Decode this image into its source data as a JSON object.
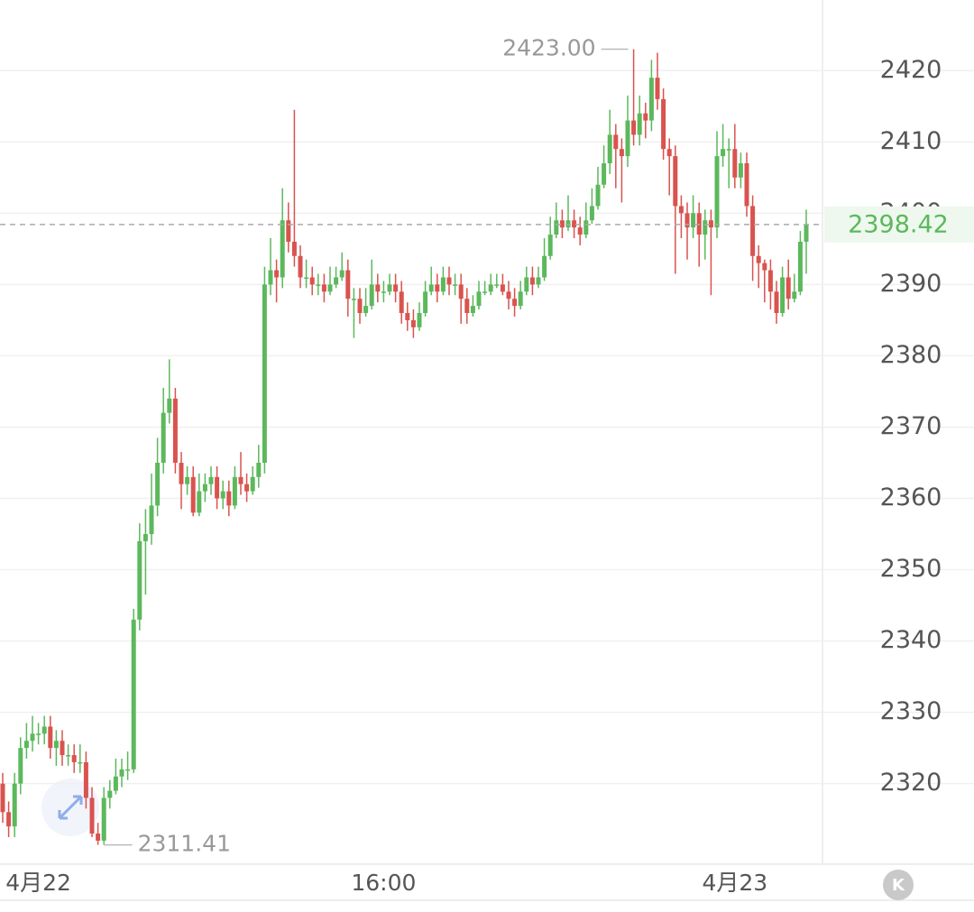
{
  "chart_data": {
    "type": "candlestick",
    "categories": [
      null,
      null,
      null,
      null,
      null,
      null,
      "4月22",
      null,
      null,
      null,
      null,
      null,
      null,
      null,
      null,
      null,
      null,
      null,
      null,
      null,
      null,
      null,
      null,
      null,
      null,
      null,
      null,
      null,
      null,
      null,
      null,
      null,
      null,
      null,
      null,
      null,
      null,
      null,
      null,
      null,
      null,
      null,
      null,
      null,
      null,
      null,
      null,
      null,
      null,
      null,
      null,
      null,
      null,
      null,
      null,
      null,
      null,
      null,
      null,
      null,
      null,
      null,
      null,
      null,
      "16:00",
      null,
      null,
      null,
      null,
      null,
      null,
      null,
      null,
      null,
      null,
      null,
      null,
      null,
      null,
      null,
      null,
      null,
      null,
      null,
      null,
      null,
      null,
      null,
      null,
      null,
      null,
      null,
      null,
      null,
      null,
      null,
      null,
      null,
      null,
      null,
      null,
      null,
      null,
      null,
      null,
      null,
      null,
      null,
      null,
      null,
      null,
      null,
      null,
      null,
      null,
      null,
      null,
      null,
      null,
      null,
      null,
      null,
      null,
      "4月23",
      null,
      null,
      null,
      null,
      null,
      null,
      null,
      null,
      null,
      null,
      null,
      null
    ],
    "open": [
      2320,
      2316,
      2314,
      2320,
      2325,
      2326,
      2327,
      2327,
      2328,
      2325,
      2326,
      2324,
      2324,
      2323,
      2323,
      2318,
      2313,
      2312,
      2318,
      2319,
      2321,
      2322,
      2322,
      2343,
      2354,
      2355,
      2359,
      2365,
      2372,
      2374,
      2365,
      2362,
      2363,
      2358,
      2361,
      2362,
      2363,
      2360,
      2361,
      2359,
      2363,
      2362,
      2361,
      2363,
      2365,
      2390,
      2392,
      2391,
      2399,
      2396,
      2394,
      2391,
      2391,
      2390,
      2390,
      2389,
      2390,
      2391,
      2392,
      2388,
      2388,
      2386,
      2387,
      2390,
      2389,
      2389,
      2390,
      2389,
      2386,
      2385,
      2384,
      2386,
      2389,
      2390,
      2389,
      2391,
      2390,
      2390,
      2388,
      2386,
      2387,
      2389,
      2389,
      2390,
      2390,
      2389,
      2388,
      2387,
      2389,
      2391,
      2390,
      2391,
      2394,
      2397,
      2399,
      2398,
      2399,
      2398,
      2397,
      2399,
      2401,
      2404,
      2407,
      2411,
      2409,
      2408,
      2413,
      2411,
      2414,
      2413,
      2419,
      2416,
      2409,
      2408,
      2401,
      2400,
      2398,
      2400,
      2397,
      2399,
      2398,
      2408,
      2409,
      2409,
      2405,
      2407,
      2401,
      2394,
      2393,
      2392,
      2389,
      2386,
      2391,
      2388,
      2389,
      2396
    ],
    "high": [
      2321.5,
      2317.5,
      2321.5,
      2326.5,
      2328.5,
      2329.5,
      2328.5,
      2329.5,
      2329.5,
      2327.5,
      2327.5,
      2325.5,
      2325.5,
      2325.5,
      2324.5,
      2319.5,
      2314.5,
      2319.5,
      2320.5,
      2323.5,
      2323.5,
      2324.5,
      2344.5,
      2356.5,
      2358.5,
      2363.5,
      2368.5,
      2375.5,
      2379.5,
      2375.5,
      2366.5,
      2364.5,
      2364.5,
      2363.5,
      2363.5,
      2364.5,
      2364.5,
      2362.5,
      2362.5,
      2364.5,
      2366.5,
      2363.5,
      2364.5,
      2367.5,
      2392.5,
      2396.5,
      2393.5,
      2403.5,
      2401.5,
      2414.5,
      2395.5,
      2393.5,
      2392.5,
      2391.5,
      2391.5,
      2392.5,
      2392.5,
      2394.5,
      2393.5,
      2389.5,
      2389.5,
      2389.5,
      2393.5,
      2391.5,
      2390.5,
      2391.5,
      2391.5,
      2390.5,
      2387.5,
      2386.5,
      2387.5,
      2390.5,
      2392.5,
      2391.5,
      2392.5,
      2392.5,
      2391.5,
      2391.5,
      2389.5,
      2388.5,
      2390.5,
      2390.5,
      2391.5,
      2391.5,
      2391.5,
      2390.5,
      2389.5,
      2390.5,
      2392.5,
      2392.5,
      2392.5,
      2396.5,
      2399.5,
      2401.5,
      2400.5,
      2402.5,
      2400.5,
      2399.5,
      2401.5,
      2403.5,
      2406.5,
      2409.5,
      2414.5,
      2412.5,
      2410.5,
      2416.5,
      2423,
      2416.5,
      2415.5,
      2421.5,
      2422.5,
      2417.5,
      2410.5,
      2409.5,
      2402.5,
      2401.5,
      2402.5,
      2401.5,
      2400.5,
      2400.5,
      2411.5,
      2412.5,
      2410.5,
      2412.5,
      2408.5,
      2408.5,
      2402.5,
      2395.5,
      2393.5,
      2393.5,
      2390.5,
      2392.5,
      2393.5,
      2391.5,
      2397.5,
      2400.5
    ],
    "low": [
      2314.5,
      2312.5,
      2312.5,
      2318.5,
      2323.5,
      2324.5,
      2325.5,
      2325.5,
      2323.5,
      2322.5,
      2322.5,
      2322.5,
      2321.5,
      2321.5,
      2316.5,
      2312.5,
      2311.41,
      2311.5,
      2316.5,
      2318.5,
      2319.5,
      2320.5,
      2321.5,
      2341.5,
      2346.5,
      2353.5,
      2357.5,
      2363.5,
      2370.5,
      2363.5,
      2358.5,
      2360.5,
      2357.5,
      2357.5,
      2359.5,
      2360.5,
      2358.5,
      2358.5,
      2357.5,
      2358.5,
      2360.5,
      2359.5,
      2360.5,
      2361.5,
      2363.5,
      2388.5,
      2387.5,
      2389.5,
      2394.5,
      2392.5,
      2389.5,
      2389.5,
      2388.5,
      2388.5,
      2387.5,
      2388.5,
      2389.5,
      2390.5,
      2385.5,
      2382.5,
      2384.5,
      2385.5,
      2386.5,
      2387.5,
      2387.5,
      2388.5,
      2387.5,
      2384.5,
      2383.5,
      2382.5,
      2383.5,
      2385.5,
      2388.5,
      2387.5,
      2388.5,
      2388.5,
      2388.5,
      2384.5,
      2384.5,
      2385.5,
      2386.5,
      2388.5,
      2388.5,
      2389.5,
      2388.5,
      2386.5,
      2385.5,
      2386.5,
      2388.5,
      2388.5,
      2389.5,
      2390.5,
      2393.5,
      2396.5,
      2396.5,
      2397.5,
      2396.5,
      2395.5,
      2396.5,
      2398.5,
      2400.5,
      2403.5,
      2405.5,
      2403.5,
      2401.5,
      2406.5,
      2409.5,
      2409.5,
      2410.5,
      2411.5,
      2414.5,
      2407.5,
      2402.5,
      2391.5,
      2396.5,
      2393.5,
      2396.5,
      2392.5,
      2393.5,
      2388.5,
      2396.5,
      2406.5,
      2403.5,
      2403.5,
      2403.5,
      2399.5,
      2390.5,
      2389.5,
      2387.5,
      2386.5,
      2384.5,
      2385.5,
      2386.5,
      2387.5,
      2388.5,
      2391.5
    ],
    "close": [
      2316,
      2314,
      2320,
      2325,
      2326,
      2327,
      2327,
      2328,
      2325,
      2326,
      2324,
      2324,
      2323,
      2323,
      2318,
      2313,
      2312,
      2318,
      2319,
      2321,
      2322,
      2322,
      2343,
      2354,
      2355,
      2359,
      2365,
      2372,
      2374,
      2365,
      2362,
      2363,
      2358,
      2361,
      2362,
      2363,
      2360,
      2361,
      2359,
      2363,
      2362,
      2361,
      2363,
      2365,
      2390,
      2392,
      2391,
      2399,
      2396,
      2394,
      2391,
      2391,
      2390,
      2390,
      2389,
      2390,
      2391,
      2392,
      2388,
      2388,
      2386,
      2387,
      2390,
      2389,
      2389,
      2390,
      2389,
      2386,
      2385,
      2384,
      2386,
      2389,
      2390,
      2389,
      2391,
      2390,
      2390,
      2388,
      2386,
      2387,
      2389,
      2389,
      2390,
      2390,
      2389,
      2388,
      2387,
      2389,
      2391,
      2390,
      2391,
      2394,
      2397,
      2399,
      2398,
      2399,
      2398,
      2397,
      2399,
      2401,
      2404,
      2407,
      2411,
      2409,
      2408,
      2413,
      2411,
      2414,
      2413,
      2419,
      2416,
      2409,
      2408,
      2401,
      2400,
      2398,
      2400,
      2397,
      2399,
      2398,
      2408,
      2409,
      2409,
      2405,
      2407,
      2401,
      2394,
      2393,
      2392,
      2389,
      2386,
      2391,
      2388,
      2389,
      2396,
      2398.42
    ],
    "up_color": "#5cb85c",
    "down_color": "#d9534f",
    "ylim": [
      2308.7,
      2429.9
    ],
    "yticks": [
      2320,
      2330,
      2340,
      2350,
      2360,
      2370,
      2380,
      2390,
      2400,
      2410,
      2420
    ],
    "grid": true,
    "max_label": "2423.00",
    "min_label": "2311.41",
    "last_label": "2398.42",
    "kline_button": "K"
  }
}
